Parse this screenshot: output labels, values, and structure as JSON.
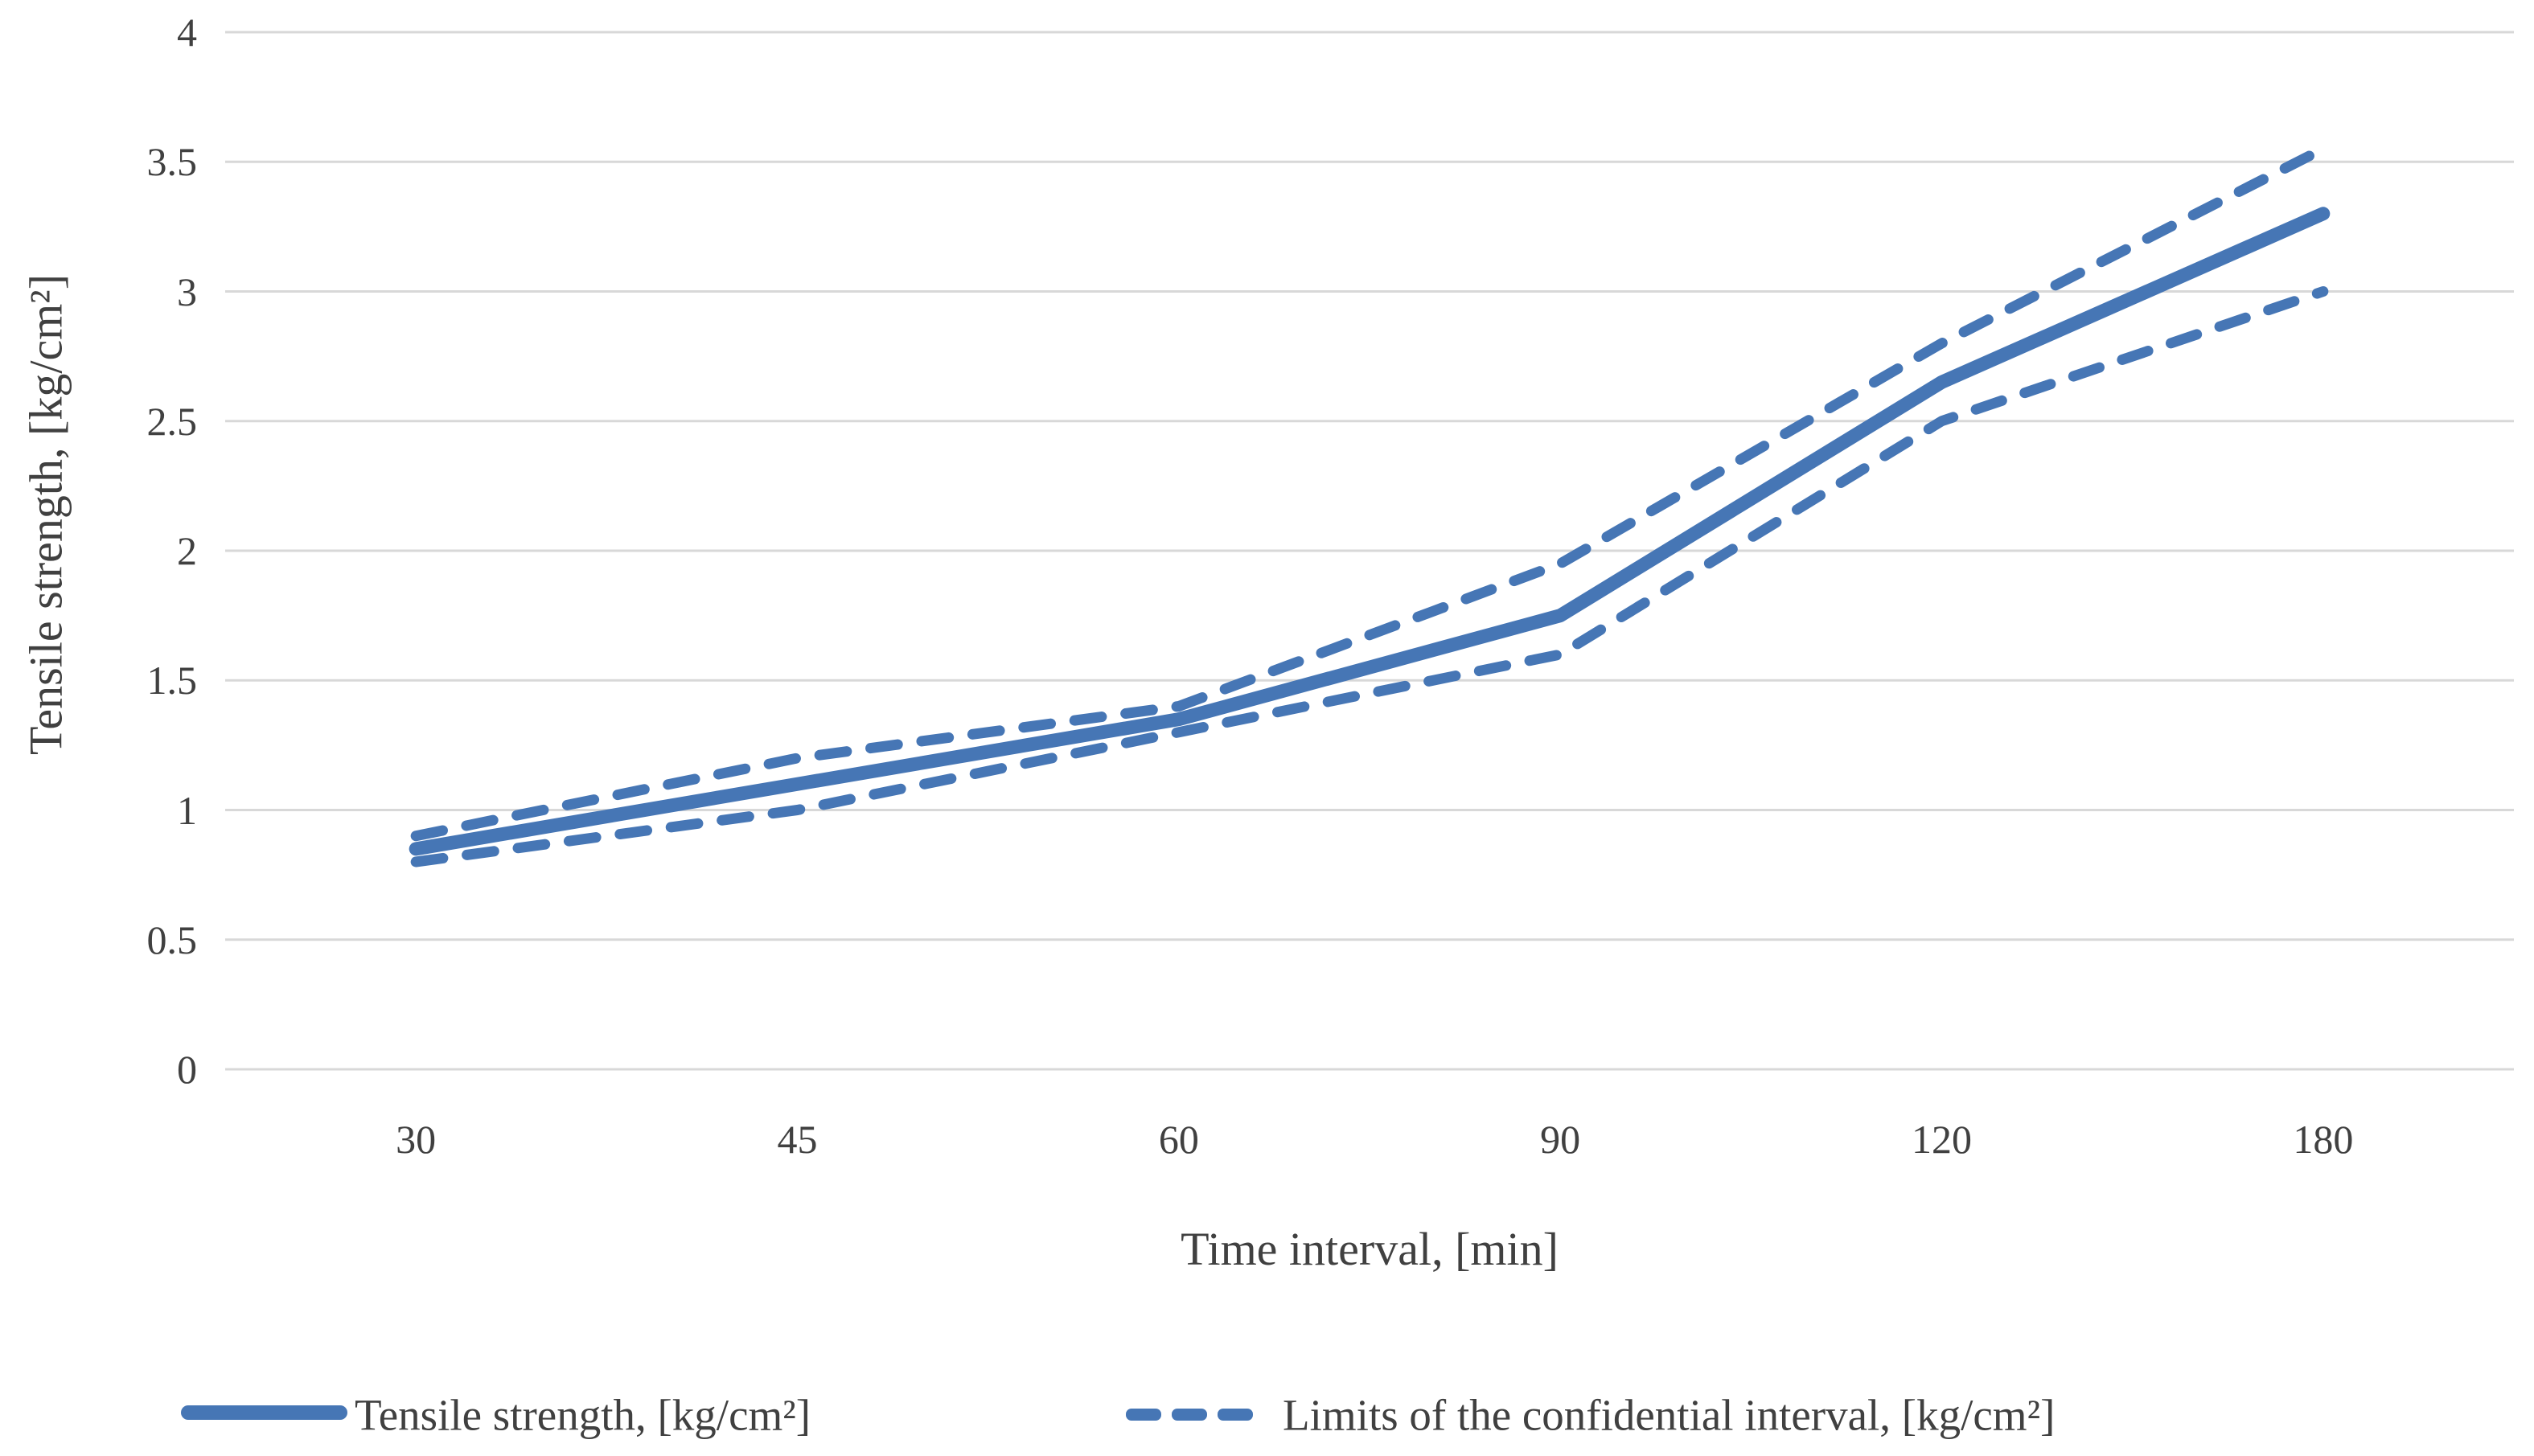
{
  "figure": {
    "background": "#FFFFFF",
    "accent_blue": "#4676B5",
    "gridline_color": "#D8D8D8",
    "text_color": "#404040"
  },
  "chart_data": {
    "type": "line",
    "title": "",
    "xlabel": "Time interval, [min]",
    "ylabel": "Tensile strength, [kg/cm²]",
    "categories": [
      "30",
      "45",
      "60",
      "90",
      "120",
      "180"
    ],
    "y_ticks": [
      "0",
      "0.5",
      "1",
      "1.5",
      "2",
      "2.5",
      "3",
      "3.5",
      "4"
    ],
    "ylim": [
      0,
      4
    ],
    "grid": "horizontal-only",
    "legend_position": "bottom",
    "line_color": "#4676B5",
    "series": [
      {
        "name": "Tensile strength, [kg/cm²]",
        "line_style": "solid",
        "role": "mean",
        "values": [
          0.85,
          1.1,
          1.35,
          1.75,
          2.65,
          3.3
        ]
      },
      {
        "name": "Limits of the confidential interval, [kg/cm²]",
        "line_style": "dashed",
        "role": "upper-limit",
        "values": [
          0.9,
          1.2,
          1.4,
          1.95,
          2.8,
          3.55
        ]
      },
      {
        "name": "Limits of the confidential interval, [kg/cm²]",
        "line_style": "dashed",
        "role": "lower-limit",
        "values": [
          0.8,
          1.0,
          1.3,
          1.6,
          2.5,
          3.0
        ]
      }
    ],
    "legend": [
      {
        "label": "Tensile strength, [kg/cm²]",
        "swatch": "solid-line"
      },
      {
        "label": "Limits of the confidential interval, [kg/cm²]",
        "swatch": "dashed-line"
      }
    ]
  }
}
